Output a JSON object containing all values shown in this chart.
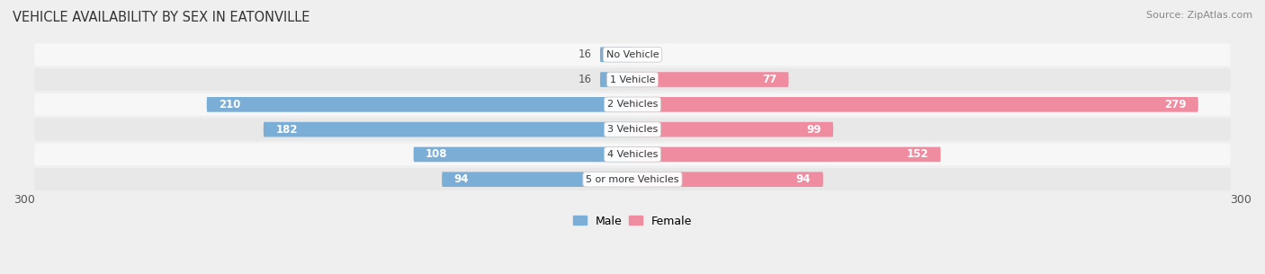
{
  "title": "VEHICLE AVAILABILITY BY SEX IN EATONVILLE",
  "source": "Source: ZipAtlas.com",
  "categories": [
    "No Vehicle",
    "1 Vehicle",
    "2 Vehicles",
    "3 Vehicles",
    "4 Vehicles",
    "5 or more Vehicles"
  ],
  "male_values": [
    16,
    16,
    210,
    182,
    108,
    94
  ],
  "female_values": [
    0,
    77,
    279,
    99,
    152,
    94
  ],
  "male_color": "#7aaed6",
  "female_color": "#f08ca0",
  "male_label": "Male",
  "female_label": "Female",
  "xlim": [
    -300,
    300
  ],
  "bar_height": 0.6,
  "background_color": "#efefef",
  "row_bg_light": "#f7f7f7",
  "row_bg_dark": "#e8e8e8",
  "title_fontsize": 10.5,
  "source_fontsize": 8,
  "label_fontsize": 8.5,
  "category_fontsize": 8,
  "legend_fontsize": 9,
  "inner_label_threshold": 40,
  "label_color_inside": "#ffffff",
  "label_color_outside": "#555555"
}
